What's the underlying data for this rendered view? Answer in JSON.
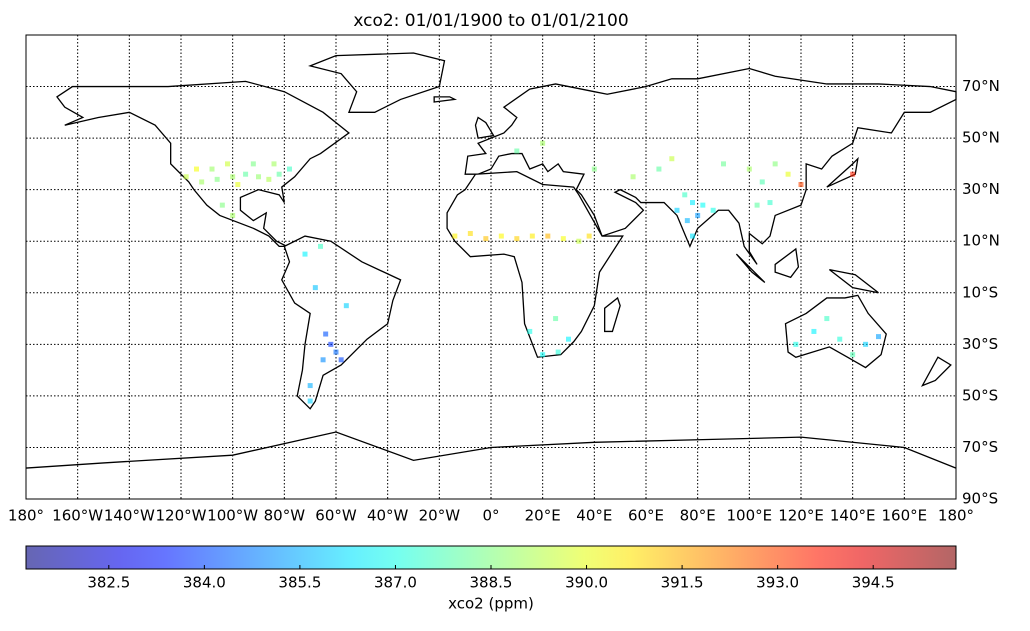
{
  "chart_data": {
    "type": "map",
    "title": "xco2: 01/01/1900 to 01/01/2100",
    "colorbar_label": "xco2 (ppm)",
    "colormap": "jet",
    "opacity": 0.6,
    "xlim": [
      -180,
      180
    ],
    "ylim": [
      -90,
      90
    ],
    "xticks": [
      {
        "value": -180,
        "label": "180°"
      },
      {
        "value": -160,
        "label": "160°W"
      },
      {
        "value": -140,
        "label": "140°W"
      },
      {
        "value": -120,
        "label": "120°W"
      },
      {
        "value": -100,
        "label": "100°W"
      },
      {
        "value": -80,
        "label": "80°W"
      },
      {
        "value": -60,
        "label": "60°W"
      },
      {
        "value": -40,
        "label": "40°W"
      },
      {
        "value": -20,
        "label": "20°W"
      },
      {
        "value": 0,
        "label": "0°"
      },
      {
        "value": 20,
        "label": "20°E"
      },
      {
        "value": 40,
        "label": "40°E"
      },
      {
        "value": 60,
        "label": "60°E"
      },
      {
        "value": 80,
        "label": "80°E"
      },
      {
        "value": 100,
        "label": "100°E"
      },
      {
        "value": 120,
        "label": "120°E"
      },
      {
        "value": 140,
        "label": "140°E"
      },
      {
        "value": 160,
        "label": "160°E"
      },
      {
        "value": 180,
        "label": "180°"
      }
    ],
    "yticks": [
      {
        "value": -90,
        "label": "90°S"
      },
      {
        "value": -70,
        "label": "70°S"
      },
      {
        "value": -50,
        "label": "50°S"
      },
      {
        "value": -30,
        "label": "30°S"
      },
      {
        "value": -10,
        "label": "10°S"
      },
      {
        "value": 10,
        "label": "10°N"
      },
      {
        "value": 30,
        "label": "30°N"
      },
      {
        "value": 50,
        "label": "50°N"
      },
      {
        "value": 70,
        "label": "70°N"
      }
    ],
    "grid": true,
    "clim": [
      381.2,
      395.8
    ],
    "cticks": [
      382.5,
      {
        "value": 384,
        "label": "384.0"
      },
      385.5,
      {
        "value": 387,
        "label": "387.0"
      },
      388.5,
      {
        "value": 390,
        "label": "390.0"
      },
      391.5,
      {
        "value": 393,
        "label": "393.0"
      },
      394.5
    ],
    "x": [
      -118,
      -112,
      -106,
      -100,
      -98,
      -95,
      -90,
      -86,
      -82,
      -78,
      -102,
      -92,
      -84,
      -108,
      -114,
      -104,
      -100,
      -72,
      -66,
      -68,
      -56,
      -64,
      -62,
      -60,
      -65,
      -58,
      -70,
      -70,
      -14,
      -8,
      -2,
      4,
      10,
      16,
      22,
      28,
      34,
      38,
      20,
      26,
      30,
      25,
      15,
      40,
      55,
      65,
      70,
      72,
      76,
      78,
      80,
      82,
      86,
      78,
      75,
      90,
      100,
      105,
      110,
      115,
      108,
      120,
      103,
      140,
      10,
      20,
      118,
      125,
      135,
      145,
      150,
      140,
      130
    ],
    "y": [
      35,
      33,
      34,
      35,
      32,
      36,
      35,
      34,
      36,
      38,
      40,
      40,
      40,
      38,
      38,
      24,
      20,
      5,
      8,
      -8,
      -15,
      -26,
      -30,
      -33,
      -36,
      -36,
      -46,
      -52,
      12,
      13,
      11,
      12,
      11,
      12,
      12,
      11,
      10,
      12,
      -34,
      -33,
      -28,
      -20,
      -25,
      38,
      35,
      38,
      42,
      22,
      18,
      25,
      20,
      24,
      22,
      12,
      28,
      40,
      38,
      33,
      40,
      36,
      25,
      32,
      24,
      36,
      45,
      48,
      -30,
      -25,
      -28,
      -30,
      -27,
      -34,
      -20
    ],
    "values": [
      389.5,
      389,
      388.5,
      389,
      390,
      388,
      388.8,
      389.2,
      388,
      387.5,
      389.6,
      388.4,
      389,
      388.9,
      390.2,
      388.5,
      389,
      386.5,
      387.5,
      385.8,
      386,
      384.2,
      383.8,
      384.5,
      385,
      384,
      385.5,
      386,
      390.5,
      390.8,
      391.2,
      390.4,
      391,
      390.6,
      391.4,
      390.2,
      389.5,
      390.8,
      386.8,
      387.2,
      386.5,
      388,
      387,
      388.5,
      389,
      388,
      389.5,
      386,
      385.6,
      386.4,
      385.2,
      386.8,
      387,
      386.3,
      387.5,
      388.2,
      389,
      387.8,
      388.6,
      390,
      387.4,
      393,
      388,
      393.5,
      388,
      389,
      387,
      386.5,
      387.2,
      386,
      385.3,
      387.8,
      387.5
    ]
  }
}
